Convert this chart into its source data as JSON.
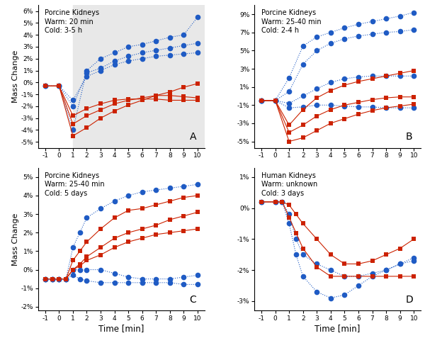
{
  "panels": [
    {
      "label": "A",
      "title_lines": [
        "Porcine Kidneys",
        "Warm: 20 min",
        "Cold: 3-5 h"
      ],
      "ylim": [
        -0.055,
        0.065
      ],
      "yticks": [
        -0.05,
        -0.04,
        -0.03,
        -0.02,
        -0.01,
        0.0,
        0.01,
        0.02,
        0.03,
        0.04,
        0.05,
        0.06
      ],
      "yticklabels": [
        "-5%",
        "-4%",
        "-3%",
        "-2%",
        "-1%",
        "0%",
        "1%",
        "2%",
        "3%",
        "4%",
        "5%",
        "6%"
      ],
      "has_ylabel": true,
      "has_xlabel": false,
      "shaded": true,
      "shade_from": 1,
      "blue_series": {
        "x": [
          -1,
          0,
          1,
          2,
          3,
          4,
          5,
          6,
          7,
          8,
          9,
          10
        ],
        "series": [
          [
            -0.003,
            -0.003,
            -0.04,
            0.01,
            0.02,
            0.025,
            0.03,
            0.032,
            0.035,
            0.038,
            0.04,
            0.055
          ],
          [
            -0.003,
            -0.003,
            -0.02,
            0.008,
            0.012,
            0.018,
            0.022,
            0.025,
            0.027,
            0.029,
            0.031,
            0.033
          ],
          [
            -0.003,
            -0.003,
            -0.015,
            0.005,
            0.01,
            0.015,
            0.018,
            0.02,
            0.022,
            0.023,
            0.024,
            0.025
          ]
        ]
      },
      "red_series": {
        "x": [
          -1,
          0,
          1,
          2,
          3,
          4,
          5,
          6,
          7,
          8,
          9,
          10
        ],
        "series": [
          [
            -0.003,
            -0.003,
            -0.045,
            -0.038,
            -0.03,
            -0.024,
            -0.019,
            -0.015,
            -0.011,
            -0.008,
            -0.004,
            -0.001
          ],
          [
            -0.003,
            -0.003,
            -0.035,
            -0.028,
            -0.023,
            -0.018,
            -0.015,
            -0.013,
            -0.011,
            -0.011,
            -0.012,
            -0.013
          ],
          [
            -0.003,
            -0.003,
            -0.028,
            -0.022,
            -0.018,
            -0.015,
            -0.014,
            -0.014,
            -0.014,
            -0.015,
            -0.015,
            -0.015
          ]
        ]
      }
    },
    {
      "label": "B",
      "title_lines": [
        "Porcine Kidneys",
        "Warm: 25-40 min",
        "Cold: 2-4 h"
      ],
      "ylim": [
        -0.057,
        0.1
      ],
      "yticks": [
        -0.05,
        -0.03,
        -0.01,
        0.01,
        0.03,
        0.05,
        0.07,
        0.09
      ],
      "yticklabels": [
        "-5%",
        "-3%",
        "-1%",
        "1%",
        "3%",
        "5%",
        "7%",
        "9%"
      ],
      "has_ylabel": false,
      "has_xlabel": false,
      "shaded": false,
      "blue_series": {
        "x": [
          -1,
          0,
          1,
          2,
          3,
          4,
          5,
          6,
          7,
          8,
          9,
          10
        ],
        "series": [
          [
            -0.005,
            -0.005,
            0.02,
            0.055,
            0.065,
            0.07,
            0.075,
            0.079,
            0.082,
            0.085,
            0.088,
            0.092
          ],
          [
            -0.005,
            -0.005,
            0.005,
            0.035,
            0.05,
            0.058,
            0.063,
            0.066,
            0.068,
            0.07,
            0.071,
            0.073
          ],
          [
            -0.005,
            -0.005,
            -0.008,
            0.0,
            0.008,
            0.015,
            0.019,
            0.021,
            0.022,
            0.022,
            0.022,
            0.022
          ],
          [
            -0.005,
            -0.005,
            -0.013,
            -0.012,
            -0.01,
            -0.01,
            -0.011,
            -0.012,
            -0.012,
            -0.013,
            -0.013,
            -0.013
          ]
        ]
      },
      "red_series": {
        "x": [
          -1,
          0,
          1,
          2,
          3,
          4,
          5,
          6,
          7,
          8,
          9,
          10
        ],
        "series": [
          [
            -0.005,
            -0.005,
            -0.032,
            -0.015,
            -0.002,
            0.006,
            0.012,
            0.016,
            0.019,
            0.022,
            0.025,
            0.028
          ],
          [
            -0.005,
            -0.005,
            -0.04,
            -0.032,
            -0.022,
            -0.015,
            -0.01,
            -0.007,
            -0.004,
            -0.002,
            -0.001,
            -0.001
          ],
          [
            -0.005,
            -0.005,
            -0.05,
            -0.046,
            -0.038,
            -0.03,
            -0.025,
            -0.02,
            -0.016,
            -0.013,
            -0.011,
            -0.009
          ]
        ]
      }
    },
    {
      "label": "C",
      "title_lines": [
        "Porcine Kidneys",
        "Warm: 25-40 min",
        "Cold: 5 days"
      ],
      "ylim": [
        -0.022,
        0.055
      ],
      "yticks": [
        -0.02,
        -0.01,
        0.0,
        0.01,
        0.02,
        0.03,
        0.04,
        0.05
      ],
      "yticklabels": [
        "-2%",
        "-1%",
        "0%",
        "1%",
        "2%",
        "3%",
        "4%",
        "5%"
      ],
      "has_ylabel": true,
      "has_xlabel": true,
      "shaded": false,
      "blue_series": {
        "x": [
          -1,
          -0.5,
          0,
          0.5,
          1,
          1.5,
          2,
          3,
          4,
          5,
          6,
          7,
          8,
          9,
          10
        ],
        "series": [
          [
            -0.005,
            -0.005,
            -0.005,
            -0.005,
            0.012,
            0.02,
            0.028,
            0.033,
            0.037,
            0.04,
            0.042,
            0.043,
            0.044,
            0.045,
            0.046
          ],
          [
            -0.005,
            -0.005,
            -0.005,
            -0.005,
            0.0,
            0.0,
            0.0,
            0.0,
            -0.002,
            -0.004,
            -0.005,
            -0.005,
            -0.005,
            -0.004,
            -0.003
          ],
          [
            -0.005,
            -0.005,
            -0.005,
            -0.005,
            -0.003,
            -0.005,
            -0.006,
            -0.007,
            -0.007,
            -0.007,
            -0.007,
            -0.007,
            -0.007,
            -0.008,
            -0.008
          ]
        ]
      },
      "red_series": {
        "x": [
          -1,
          -0.5,
          0,
          0.5,
          1,
          1.5,
          2,
          3,
          4,
          5,
          6,
          7,
          8,
          9,
          10
        ],
        "series": [
          [
            -0.005,
            -0.005,
            -0.005,
            -0.005,
            0.005,
            0.01,
            0.015,
            0.022,
            0.028,
            0.032,
            0.033,
            0.035,
            0.037,
            0.039,
            0.04
          ],
          [
            -0.005,
            -0.005,
            -0.005,
            -0.005,
            0.0,
            0.003,
            0.007,
            0.012,
            0.017,
            0.02,
            0.022,
            0.024,
            0.027,
            0.029,
            0.031
          ],
          [
            -0.005,
            -0.005,
            -0.005,
            -0.005,
            0.0,
            0.002,
            0.005,
            0.008,
            0.012,
            0.015,
            0.017,
            0.019,
            0.02,
            0.021,
            0.022
          ]
        ]
      }
    },
    {
      "label": "D",
      "title_lines": [
        "Human Kidneys",
        "Warm: unknown",
        "Cold: 3 days"
      ],
      "ylim": [
        -0.033,
        0.013
      ],
      "yticks": [
        -0.03,
        -0.02,
        -0.01,
        0.0,
        0.01
      ],
      "yticklabels": [
        "-3%",
        "-2%",
        "-1%",
        "0%",
        "1%"
      ],
      "has_ylabel": false,
      "has_xlabel": true,
      "shaded": false,
      "blue_series": {
        "x": [
          -1,
          0,
          0.5,
          1,
          1.5,
          2,
          3,
          4,
          5,
          6,
          7,
          8,
          9,
          10
        ],
        "series": [
          [
            0.002,
            0.002,
            0.002,
            -0.002,
            -0.01,
            -0.015,
            -0.018,
            -0.02,
            -0.022,
            -0.022,
            -0.021,
            -0.02,
            -0.018,
            -0.017
          ],
          [
            0.002,
            0.002,
            0.002,
            -0.005,
            -0.015,
            -0.022,
            -0.027,
            -0.029,
            -0.028,
            -0.025,
            -0.022,
            -0.02,
            -0.018,
            -0.016
          ]
        ]
      },
      "red_series": {
        "x": [
          -1,
          0,
          0.5,
          1,
          1.5,
          2,
          3,
          4,
          5,
          6,
          7,
          8,
          9,
          10
        ],
        "series": [
          [
            0.002,
            0.002,
            0.002,
            0.001,
            -0.002,
            -0.005,
            -0.01,
            -0.015,
            -0.018,
            -0.018,
            -0.017,
            -0.015,
            -0.013,
            -0.01
          ],
          [
            0.002,
            0.002,
            0.002,
            -0.003,
            -0.008,
            -0.013,
            -0.019,
            -0.022,
            -0.022,
            -0.022,
            -0.022,
            -0.022,
            -0.022,
            -0.022
          ]
        ]
      }
    }
  ],
  "blue_color": "#1F5BC4",
  "red_color": "#CC2200",
  "marker_size_blue": 5.5,
  "marker_size_red": 4.5,
  "line_width": 0.8,
  "shaded_color": "#E8E8E8"
}
